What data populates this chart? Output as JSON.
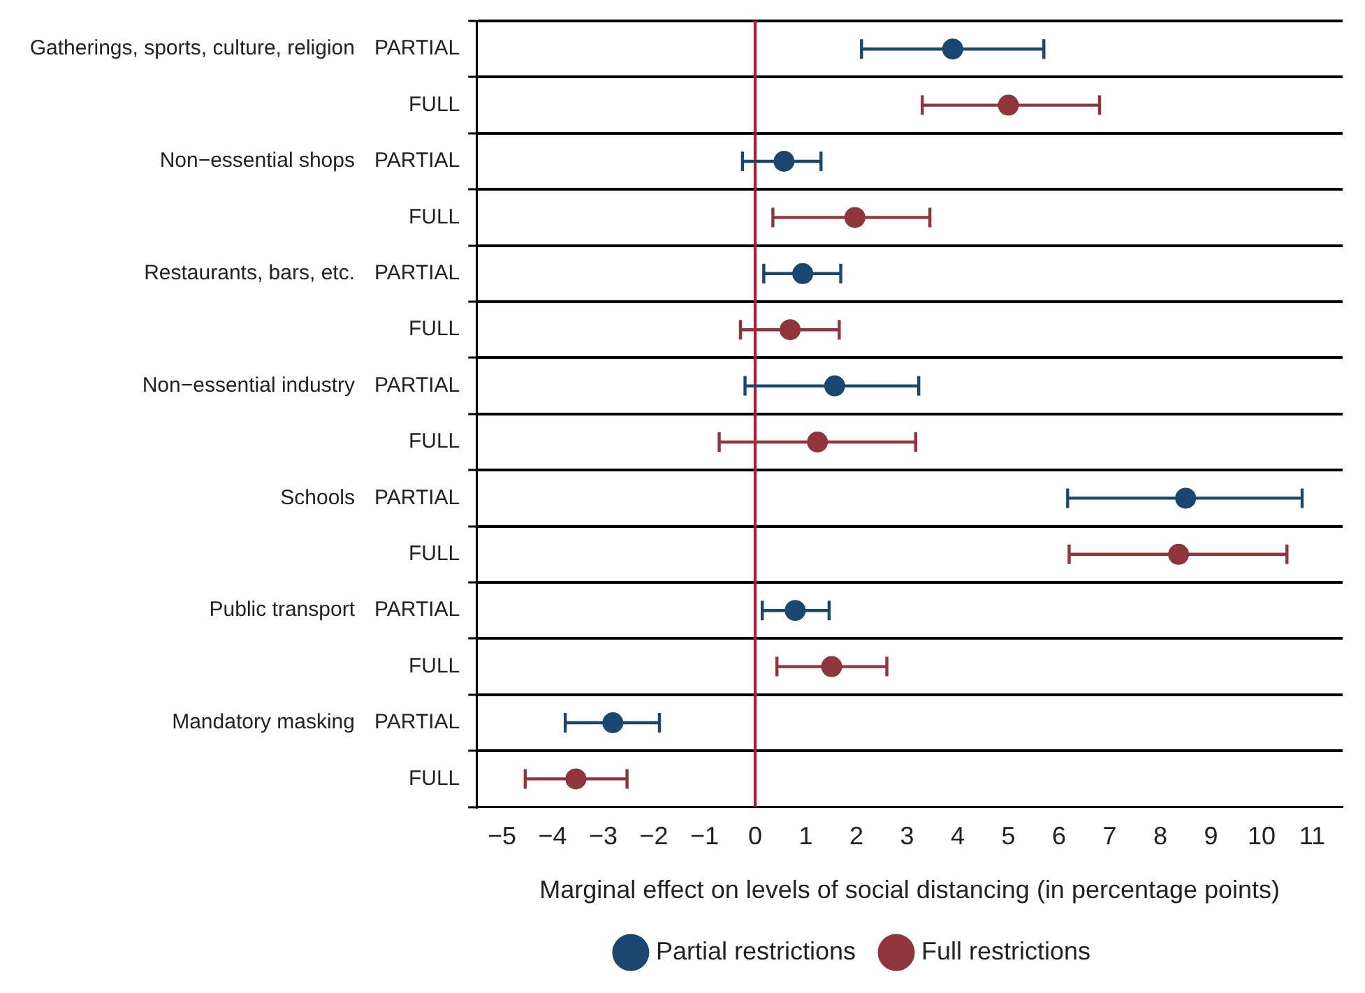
{
  "chart_data": {
    "type": "scatter",
    "orientation": "horizontal",
    "xlabel": "Marginal effect on levels of social distancing (in percentage points)",
    "categories": [
      "PARTIAL",
      "FULL",
      "PARTIAL",
      "FULL",
      "PARTIAL",
      "FULL",
      "PARTIAL",
      "FULL",
      "PARTIAL",
      "FULL",
      "PARTIAL",
      "FULL",
      "PARTIAL",
      "FULL"
    ],
    "annotations": [
      "Gatherings, sports, culture, religion",
      "Non−essential shops",
      "Restaurants, bars, etc.",
      "Non−essential industry",
      "Schools",
      "Public transport",
      "Mandatory masking"
    ],
    "series": [
      {
        "name": "Partial restrictions",
        "color": "#1a476f",
        "values": [
          3.9,
          null,
          0.57,
          null,
          0.94,
          null,
          1.57,
          null,
          8.5,
          null,
          0.79,
          null,
          -2.81,
          null
        ],
        "errors": [
          [
            2.1,
            5.7
          ],
          null,
          [
            -0.25,
            1.3
          ],
          null,
          [
            0.17,
            1.69
          ],
          null,
          [
            -0.2,
            3.23
          ],
          null,
          [
            6.17,
            10.8
          ],
          null,
          [
            0.14,
            1.46
          ],
          null,
          [
            -3.75,
            -1.89
          ],
          null
        ]
      },
      {
        "name": "Full restrictions",
        "color": "#90353b",
        "values": [
          null,
          5.0,
          null,
          1.97,
          null,
          0.69,
          null,
          1.23,
          null,
          8.36,
          null,
          1.51,
          null,
          -3.54
        ],
        "errors": [
          null,
          [
            3.3,
            6.8
          ],
          null,
          [
            0.35,
            3.45
          ],
          null,
          [
            -0.29,
            1.66
          ],
          null,
          [
            -0.71,
            3.17
          ],
          null,
          [
            6.2,
            10.5
          ],
          null,
          [
            0.43,
            2.6
          ],
          null,
          [
            -4.54,
            -2.53
          ]
        ]
      }
    ],
    "xlim": [
      -5.5,
      11.6
    ],
    "xticks": [
      {
        "value": -5,
        "label": "−5"
      },
      {
        "value": -4,
        "label": "−4"
      },
      {
        "value": -3,
        "label": "−3"
      },
      {
        "value": -2,
        "label": "−2"
      },
      {
        "value": -1,
        "label": "−1"
      },
      0,
      1,
      2,
      3,
      4,
      5,
      6,
      7,
      8,
      9,
      10,
      11
    ],
    "ref_lines": [
      {
        "axis": "x",
        "value": 0,
        "color": "#c8102e"
      }
    ],
    "grid": "y",
    "legend": "bottom",
    "marker": "circle"
  }
}
